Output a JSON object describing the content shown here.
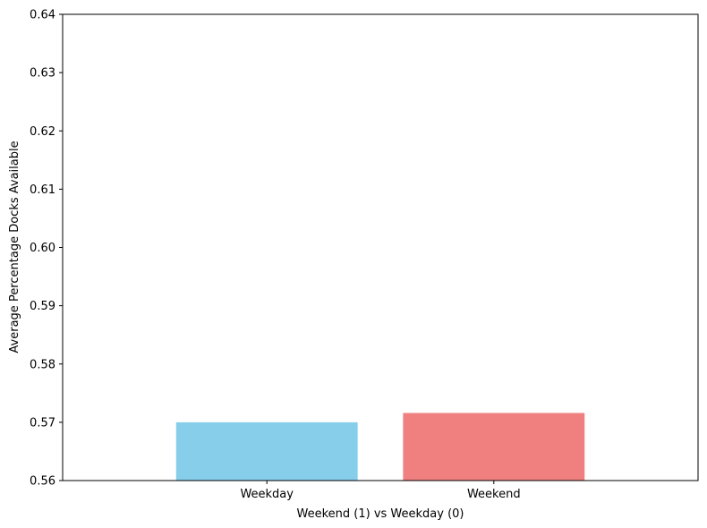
{
  "chart_data": {
    "type": "bar",
    "title": "",
    "xlabel": "Weekend (1) vs Weekday (0)",
    "ylabel": "Average Percentage Docks Available",
    "categories": [
      "Weekday",
      "Weekend"
    ],
    "values": [
      0.57,
      0.5716
    ],
    "colors": [
      "#87ceeb",
      "#f08080"
    ],
    "ylim": [
      0.56,
      0.64
    ],
    "yticks": [
      0.56,
      0.57,
      0.58,
      0.59,
      0.6,
      0.61,
      0.62,
      0.63,
      0.64
    ],
    "ytick_labels": [
      "0.56",
      "0.57",
      "0.58",
      "0.59",
      "0.60",
      "0.61",
      "0.62",
      "0.63",
      "0.64"
    ],
    "grid": false,
    "legend": false
  }
}
